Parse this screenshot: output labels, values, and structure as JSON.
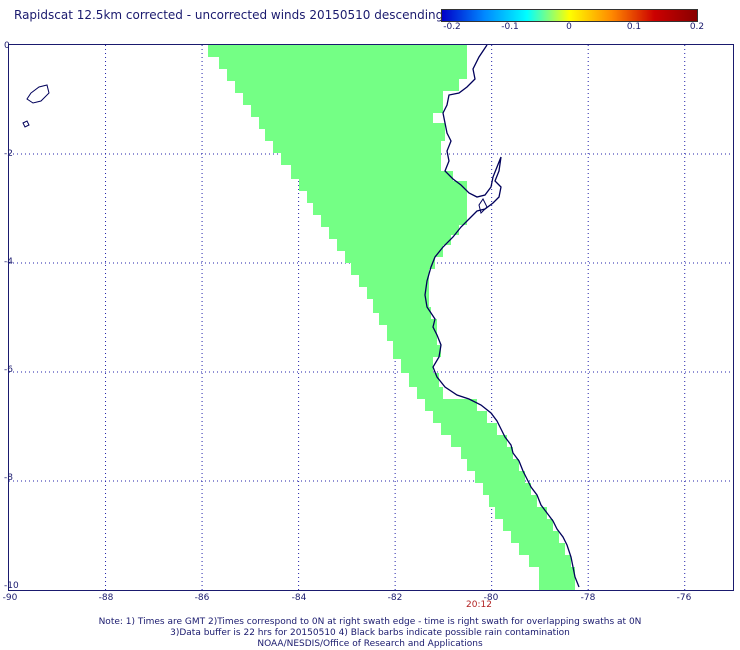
{
  "title": "Rapidscat 12.5km corrected - uncorrected winds 20150510 descending",
  "colorbar": {
    "labels": [
      "-0.2",
      "-0.1",
      "0",
      "0.1",
      "0.2"
    ],
    "colors": [
      "#0000c8",
      "#0088ff",
      "#00ffff",
      "#ffff00",
      "#ff8800",
      "#cc0000",
      "#880000"
    ]
  },
  "map": {
    "lat_labels": [
      "0",
      "-2",
      "-4",
      "-6",
      "-8",
      "-10"
    ],
    "lon_labels": [
      "-90",
      "-88",
      "-86",
      "-84",
      "-82",
      "-80",
      "-78",
      "-76"
    ],
    "swath_color": "#74ff85",
    "coast_color": "#00005a",
    "grid_color": "#2222aa",
    "time_label": "20:12"
  },
  "notes": [
    "Note: 1) Times are GMT 2)Times correspond to 0N at right swath edge - time is right swath for overlapping swaths at 0N",
    "3)Data buffer is 22 hrs for 20150510 4) Black barbs indicate possible rain contamination",
    "NOAA/NESDIS/Office of Research and Applications"
  ]
}
